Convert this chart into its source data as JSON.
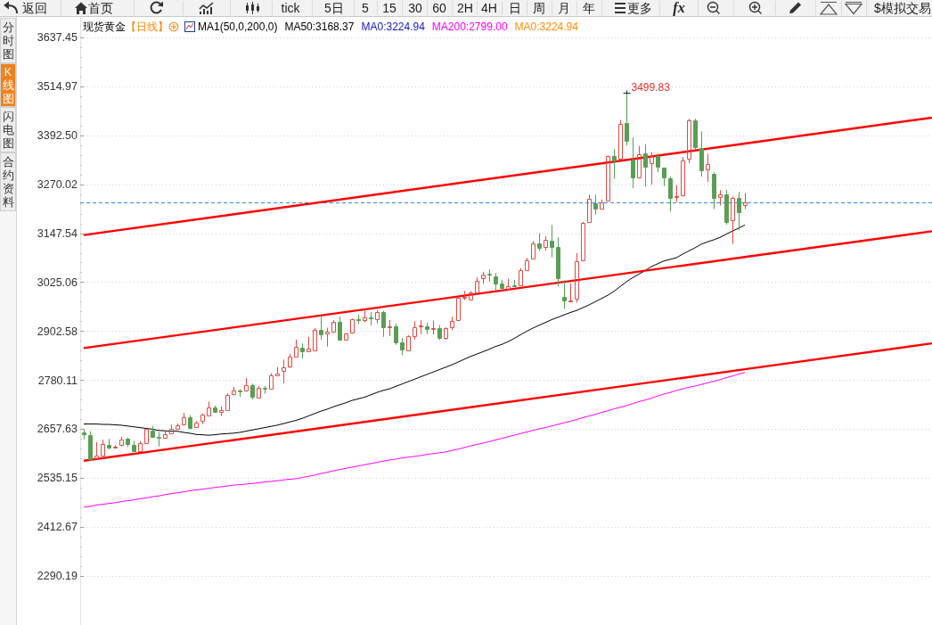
{
  "chart_data": {
    "type": "candlestick",
    "title": "现货黄金",
    "subtitle": "【日线】",
    "categories": [
      null,
      null,
      null,
      null,
      null,
      null,
      null,
      null,
      null,
      null,
      null,
      null,
      null,
      null,
      null,
      null,
      null,
      null,
      null,
      null,
      null,
      null,
      null,
      null,
      null,
      null,
      null,
      null,
      null,
      null,
      null,
      null,
      null,
      null,
      null,
      null,
      null,
      null,
      null,
      null,
      null,
      null,
      null,
      null,
      null,
      null,
      null,
      null,
      null,
      null,
      null,
      null,
      null,
      null,
      null,
      null,
      null,
      null,
      null,
      null,
      null,
      null,
      null,
      null,
      null,
      null,
      null,
      null,
      null,
      null,
      null,
      null,
      null,
      null,
      null,
      null,
      null,
      null,
      null,
      null,
      null,
      null,
      null,
      null,
      null,
      null,
      null,
      null,
      null,
      null,
      null,
      null,
      null,
      null,
      null,
      null,
      null,
      null,
      null,
      null,
      null,
      null,
      null,
      null,
      null,
      null,
      null
    ],
    "ohlc": [
      [
        2649,
        2658,
        2632,
        2644
      ],
      [
        2643,
        2652,
        2581,
        2582
      ],
      [
        2585,
        2625,
        2583,
        2591
      ],
      [
        2592,
        2631,
        2591,
        2620
      ],
      [
        2618,
        2633,
        2607,
        2610
      ],
      [
        2610,
        2617,
        2609,
        2613
      ],
      [
        2617,
        2638,
        2614,
        2631
      ],
      [
        2633,
        2635,
        2612,
        2619
      ],
      [
        2617,
        2628,
        2601,
        2603
      ],
      [
        2603,
        2627,
        2602,
        2622
      ],
      [
        2623,
        2660,
        2621,
        2657
      ],
      [
        2654,
        2665,
        2635,
        2637
      ],
      [
        2638,
        2650,
        2614,
        2635
      ],
      [
        2635,
        2652,
        2634,
        2644
      ],
      [
        2647,
        2668,
        2646,
        2657
      ],
      [
        2659,
        2671,
        2657,
        2666
      ],
      [
        2669,
        2698,
        2666,
        2686
      ],
      [
        2686,
        2692,
        2657,
        2660
      ],
      [
        2662,
        2677,
        2660,
        2674
      ],
      [
        2678,
        2696,
        2670,
        2694
      ],
      [
        2692,
        2726,
        2690,
        2712
      ],
      [
        2711,
        2716,
        2700,
        2701
      ],
      [
        2701,
        2714,
        2690,
        2704
      ],
      [
        2705,
        2747,
        2704,
        2742
      ],
      [
        2744,
        2763,
        2742,
        2753
      ],
      [
        2754,
        2757,
        2738,
        2751
      ],
      [
        2753,
        2785,
        2751,
        2768
      ],
      [
        2767,
        2771,
        2731,
        2739
      ],
      [
        2737,
        2765,
        2735,
        2760
      ],
      [
        2761,
        2765,
        2746,
        2758
      ],
      [
        2758,
        2797,
        2757,
        2791
      ],
      [
        2792,
        2813,
        2791,
        2797
      ],
      [
        2802,
        2831,
        2772,
        2812
      ],
      [
        2813,
        2846,
        2810,
        2838
      ],
      [
        2839,
        2881,
        2838,
        2864
      ],
      [
        2862,
        2872,
        2834,
        2852
      ],
      [
        2853,
        2888,
        2852,
        2858
      ],
      [
        2855,
        2910,
        2853,
        2905
      ],
      [
        2905,
        2941,
        2881,
        2895
      ],
      [
        2896,
        2911,
        2864,
        2900
      ],
      [
        2902,
        2930,
        2901,
        2925
      ],
      [
        2925,
        2939,
        2878,
        2882
      ],
      [
        2882,
        2898,
        2881,
        2896
      ],
      [
        2898,
        2934,
        2896,
        2932
      ],
      [
        2933,
        2944,
        2920,
        2931
      ],
      [
        2931,
        2958,
        2925,
        2936
      ],
      [
        2936,
        2950,
        2917,
        2935
      ],
      [
        2933,
        2955,
        2922,
        2950
      ],
      [
        2950,
        2953,
        2888,
        2913
      ],
      [
        2912,
        2930,
        2890,
        2914
      ],
      [
        2914,
        2921,
        2868,
        2875
      ],
      [
        2874,
        2885,
        2842,
        2857
      ],
      [
        2855,
        2892,
        2854,
        2889
      ],
      [
        2891,
        2927,
        2881,
        2913
      ],
      [
        2915,
        2930,
        2895,
        2917
      ],
      [
        2915,
        2924,
        2895,
        2908
      ],
      [
        2908,
        2929,
        2894,
        2909
      ],
      [
        2909,
        2918,
        2880,
        2886
      ],
      [
        2886,
        2912,
        2881,
        2911
      ],
      [
        2913,
        2938,
        2905,
        2929
      ],
      [
        2931,
        2989,
        2930,
        2985
      ],
      [
        2985,
        3003,
        2980,
        2988
      ],
      [
        2982,
        3002,
        2981,
        2999
      ],
      [
        3000,
        3037,
        2999,
        3029
      ],
      [
        3034,
        3051,
        3021,
        3043
      ],
      [
        3046,
        3057,
        3026,
        3043
      ],
      [
        3040,
        3048,
        3004,
        3022
      ],
      [
        3021,
        3031,
        3008,
        3011
      ],
      [
        3009,
        3034,
        3008,
        3016
      ],
      [
        3018,
        3031,
        3013,
        3014
      ],
      [
        3017,
        3060,
        3016,
        3054
      ],
      [
        3055,
        3086,
        3054,
        3080
      ],
      [
        3085,
        3128,
        3083,
        3121
      ],
      [
        3121,
        3147,
        3103,
        3111
      ],
      [
        3112,
        3140,
        3104,
        3130
      ],
      [
        3128,
        3168,
        3087,
        3112
      ],
      [
        3112,
        3137,
        3015,
        3035
      ],
      [
        2988,
        3030,
        2958,
        2980
      ],
      [
        2977,
        3022,
        2976,
        2979
      ],
      [
        2983,
        3098,
        2974,
        3078
      ],
      [
        3080,
        3176,
        3079,
        3173
      ],
      [
        3176,
        3244,
        3175,
        3234
      ],
      [
        3223,
        3244,
        3194,
        3210
      ],
      [
        3210,
        3232,
        3209,
        3225
      ],
      [
        3230,
        3342,
        3228,
        3340
      ],
      [
        3340,
        3358,
        3284,
        3330
      ],
      [
        3333,
        3431,
        3331,
        3422
      ],
      [
        3423,
        3499.83,
        3367,
        3379
      ],
      [
        3331,
        3387,
        3260,
        3288
      ],
      [
        3288,
        3366,
        3286,
        3345
      ],
      [
        3348,
        3370,
        3264,
        3314
      ],
      [
        3323,
        3350,
        3269,
        3340
      ],
      [
        3340,
        3347,
        3300,
        3315
      ],
      [
        3311,
        3312,
        3266,
        3288
      ],
      [
        3286,
        3289,
        3202,
        3236
      ],
      [
        3237,
        3268,
        3225,
        3240
      ],
      [
        3242,
        3338,
        3239,
        3330
      ],
      [
        3335,
        3434,
        3323,
        3429
      ],
      [
        3431,
        3434,
        3355,
        3363
      ],
      [
        3361,
        3402,
        3289,
        3305
      ],
      [
        3308,
        3346,
        3276,
        3321
      ],
      [
        3295,
        3300,
        3208,
        3235
      ],
      [
        3239,
        3255,
        3217,
        3245
      ],
      [
        3245,
        3256,
        3169,
        3175
      ],
      [
        3179,
        3240,
        3121,
        3236
      ],
      [
        3236,
        3251,
        3156,
        3200
      ],
      [
        3217,
        3248,
        3208,
        3225
      ]
    ],
    "colors": [
      "#5a9e56",
      "#5a9e56",
      "#e04b45",
      "#e04b45",
      "#5a9e56",
      "#e04b45",
      "#e04b45",
      "#5a9e56",
      "#5a9e56",
      "#e04b45",
      "#e04b45",
      "#5a9e56",
      "#5a9e56",
      "#e04b45",
      "#e04b45",
      "#e04b45",
      "#e04b45",
      "#5a9e56",
      "#e04b45",
      "#e04b45",
      "#e04b45",
      "#5a9e56",
      "#e04b45",
      "#e04b45",
      "#e04b45",
      "#5a9e56",
      "#e04b45",
      "#5a9e56",
      "#e04b45",
      "#5a9e56",
      "#e04b45",
      "#e04b45",
      "#e04b45",
      "#e04b45",
      "#e04b45",
      "#5a9e56",
      "#e04b45",
      "#e04b45",
      "#5a9e56",
      "#e04b45",
      "#e04b45",
      "#5a9e56",
      "#e04b45",
      "#e04b45",
      "#5a9e56",
      "#e04b45",
      "#5a9e56",
      "#e04b45",
      "#5a9e56",
      "#e04b45",
      "#5a9e56",
      "#5a9e56",
      "#e04b45",
      "#e04b45",
      "#e04b45",
      "#5a9e56",
      "#e04b45",
      "#5a9e56",
      "#e04b45",
      "#e04b45",
      "#e04b45",
      "#e04b45",
      "#e04b45",
      "#e04b45",
      "#e04b45",
      "#5a9e56",
      "#5a9e56",
      "#5a9e56",
      "#e04b45",
      "#5a9e56",
      "#e04b45",
      "#e04b45",
      "#e04b45",
      "#5a9e56",
      "#e04b45",
      "#5a9e56",
      "#5a9e56",
      "#5a9e56",
      "#e04b45",
      "#e04b45",
      "#e04b45",
      "#e04b45",
      "#5a9e56",
      "#e04b45",
      "#e04b45",
      "#5a9e56",
      "#e04b45",
      "#5a9e56",
      "#5a9e56",
      "#e04b45",
      "#5a9e56",
      "#e04b45",
      "#5a9e56",
      "#5a9e56",
      "#5a9e56",
      "#e04b45",
      "#e04b45",
      "#e04b45",
      "#5a9e56",
      "#5a9e56",
      "#e04b45",
      "#5a9e56",
      "#e04b45",
      "#5a9e56",
      "#e04b45",
      "#5a9e56",
      "#e04b45"
    ],
    "series": [
      {
        "name": "MA50:3168.37",
        "type": "line",
        "color": "#000000",
        "values": [
          2670,
          2670,
          2670,
          2669,
          2669,
          2668,
          2667,
          2665,
          2663,
          2661,
          2659,
          2657,
          2654,
          2653,
          2652,
          2652,
          2649,
          2647,
          2644,
          2643,
          2642,
          2643,
          2645,
          2646,
          2647,
          2649,
          2652,
          2655,
          2658,
          2661,
          2664,
          2667,
          2671,
          2675,
          2679,
          2684,
          2690,
          2696,
          2702,
          2707,
          2713,
          2718,
          2723,
          2729,
          2733,
          2737,
          2743,
          2749,
          2754,
          2758,
          2764,
          2770,
          2776,
          2782,
          2788,
          2794,
          2800,
          2806,
          2812,
          2818,
          2825,
          2832,
          2839,
          2845,
          2851,
          2857,
          2864,
          2869,
          2876,
          2884,
          2893,
          2902,
          2910,
          2917,
          2924,
          2931,
          2937,
          2943,
          2949,
          2954,
          2961,
          2968,
          2976,
          2984,
          2992,
          3002,
          3014,
          3026,
          3036,
          3045,
          3054,
          3064,
          3071,
          3078,
          3082,
          3086,
          3095,
          3103,
          3111,
          3120,
          3126,
          3131,
          3137,
          3145,
          3153,
          3160,
          3168
        ]
      },
      {
        "name": "MA200:2799.00",
        "type": "line",
        "color": "#ff00ff",
        "values": [
          2462,
          2464,
          2467,
          2469,
          2471,
          2473,
          2476,
          2478,
          2480,
          2483,
          2485,
          2488,
          2490,
          2493,
          2496,
          2498,
          2500,
          2503,
          2505,
          2507,
          2509,
          2511,
          2513,
          2515,
          2517,
          2518,
          2520,
          2521,
          2523,
          2525,
          2526,
          2528,
          2530,
          2532,
          2533,
          2536,
          2539,
          2542,
          2546,
          2549,
          2553,
          2556,
          2559,
          2562,
          2565,
          2568,
          2571,
          2574,
          2577,
          2580,
          2582,
          2585,
          2587,
          2589,
          2591,
          2594,
          2596,
          2598,
          2600,
          2604,
          2607,
          2611,
          2615,
          2619,
          2622,
          2626,
          2630,
          2634,
          2638,
          2642,
          2646,
          2650,
          2654,
          2658,
          2661,
          2665,
          2669,
          2673,
          2677,
          2681,
          2686,
          2690,
          2694,
          2699,
          2703,
          2708,
          2712,
          2716,
          2721,
          2726,
          2730,
          2735,
          2740,
          2745,
          2749,
          2754,
          2758,
          2762,
          2765,
          2769,
          2773,
          2777,
          2781,
          2786,
          2790,
          2795,
          2799
        ]
      },
      {
        "type": "line",
        "color": "#ff0000",
        "values": [
          3143,
          null,
          null,
          null,
          null,
          null,
          null,
          null,
          null,
          null,
          null,
          null,
          null,
          null,
          null,
          null,
          null,
          null,
          null,
          null,
          null,
          null,
          null,
          null,
          null,
          null,
          null,
          null,
          null,
          null,
          null,
          null,
          null,
          null,
          null,
          null,
          null,
          null,
          null,
          null,
          null,
          null,
          null,
          null,
          null,
          null,
          null,
          null,
          null,
          null,
          null,
          null,
          null,
          null,
          null,
          null,
          null,
          null,
          null,
          null,
          null,
          null,
          null,
          null,
          null,
          null,
          null,
          null,
          null,
          null,
          null,
          null,
          null,
          null,
          null,
          null,
          null,
          null,
          null,
          null,
          null,
          null,
          null,
          null,
          null,
          null,
          null,
          null,
          null,
          null,
          null,
          null,
          null,
          null,
          null,
          null,
          null,
          null,
          null,
          null,
          null,
          null,
          null,
          null,
          null,
          null,
          3372
        ]
      },
      {
        "type": "line",
        "color": "#ff0000",
        "values": [
          2860,
          null,
          null,
          null,
          null,
          null,
          null,
          null,
          null,
          null,
          null,
          null,
          null,
          null,
          null,
          null,
          null,
          null,
          null,
          null,
          null,
          null,
          null,
          null,
          null,
          null,
          null,
          null,
          null,
          null,
          null,
          null,
          null,
          null,
          null,
          null,
          null,
          null,
          null,
          null,
          null,
          null,
          null,
          null,
          null,
          null,
          null,
          null,
          null,
          null,
          null,
          null,
          null,
          null,
          null,
          null,
          null,
          null,
          null,
          null,
          null,
          null,
          null,
          null,
          null,
          null,
          null,
          null,
          null,
          null,
          null,
          null,
          null,
          null,
          null,
          null,
          null,
          null,
          null,
          null,
          null,
          null,
          null,
          null,
          null,
          null,
          null,
          null,
          null,
          null,
          null,
          null,
          null,
          null,
          null,
          null,
          null,
          null,
          null,
          null,
          null,
          null,
          null,
          null,
          null,
          null,
          3088
        ]
      },
      {
        "type": "line",
        "color": "#ff0000",
        "values": [
          2578,
          null,
          null,
          null,
          null,
          null,
          null,
          null,
          null,
          null,
          null,
          null,
          null,
          null,
          null,
          null,
          null,
          null,
          null,
          null,
          null,
          null,
          null,
          null,
          null,
          null,
          null,
          null,
          null,
          null,
          null,
          null,
          null,
          null,
          null,
          null,
          null,
          null,
          null,
          null,
          null,
          null,
          null,
          null,
          null,
          null,
          null,
          null,
          null,
          null,
          null,
          null,
          null,
          null,
          null,
          null,
          null,
          null,
          null,
          null,
          null,
          null,
          null,
          null,
          null,
          null,
          null,
          null,
          null,
          null,
          null,
          null,
          null,
          null,
          null,
          null,
          null,
          null,
          null,
          null,
          null,
          null,
          null,
          null,
          null,
          null,
          null,
          null,
          null,
          null,
          null,
          null,
          null,
          null,
          null,
          null,
          null,
          null,
          null,
          null,
          null,
          null,
          null,
          null,
          null,
          null,
          2807
        ]
      }
    ],
    "ylim": [
      2167,
      3691
    ],
    "yticks": [
      2290.19,
      2412.67,
      2535.15,
      2657.63,
      2780.11,
      2902.58,
      3025.06,
      3147.54,
      3270.02,
      {
        "value": 3392.5,
        "label": "3392.50"
      },
      3514.97,
      3637.45
    ],
    "tick_labels": "y",
    "grid": "y",
    "legend": "top left",
    "ref_lines": [
      {
        "axis": "y",
        "value": 3224.94,
        "color": "#2f8ae5",
        "line_style": "dashed"
      }
    ],
    "annotations": [
      "返回",
      "首页",
      "tick",
      "5日",
      "5",
      "15",
      "30",
      "60",
      "2H",
      "4H",
      "日",
      "周",
      "月",
      "年",
      "更多",
      "fx",
      "$模拟交易",
      "分时图",
      "K线图",
      "闪电图",
      "合约资料",
      "MA1(50,0,200,0)",
      "MA0:3224.94",
      "MA0:3224.94",
      "3499.83"
    ]
  }
}
